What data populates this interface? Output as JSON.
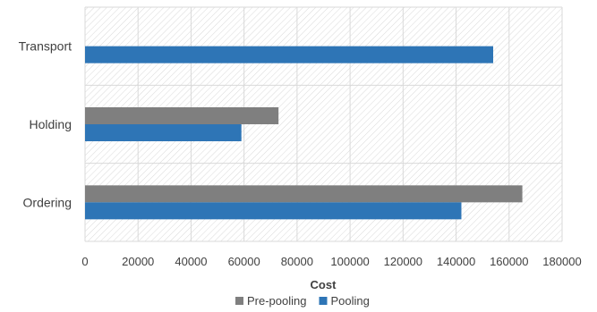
{
  "chart_data": {
    "type": "bar",
    "orientation": "horizontal",
    "categories": [
      "Transport",
      "Holding",
      "Ordering"
    ],
    "series": [
      {
        "name": "Pre-pooling",
        "values": [
          null,
          73000,
          165000
        ],
        "color": "#7f7f7f"
      },
      {
        "name": "Pooling",
        "values": [
          154000,
          59000,
          142000
        ],
        "color": "#2e75b6"
      }
    ],
    "xlabel": "Cost",
    "ylabel": "",
    "xlim": [
      0,
      180000
    ],
    "xticks": [
      "0",
      "20000",
      "40000",
      "60000",
      "80000",
      "100000",
      "120000",
      "140000",
      "160000",
      "180000"
    ],
    "grid": true,
    "plot_background": "hatched",
    "legend_position": "bottom"
  }
}
